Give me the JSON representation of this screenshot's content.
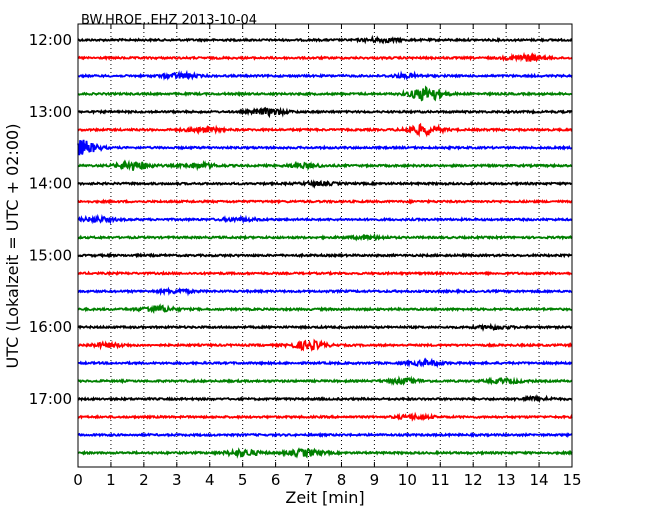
{
  "chart_data": {
    "type": "line",
    "title": "BW.HROE..EHZ 2013-10-04",
    "xlabel": "Zeit  [min]",
    "ylabel": "UTC (Lokalzeit = UTC + 02:00)",
    "xlim": [
      0,
      15
    ],
    "x_ticks": [
      "0",
      "1",
      "2",
      "3",
      "4",
      "5",
      "6",
      "7",
      "8",
      "9",
      "10",
      "11",
      "12",
      "13",
      "14",
      "15"
    ],
    "y_ticks": [
      "12:00",
      "13:00",
      "14:00",
      "15:00",
      "16:00",
      "17:00"
    ],
    "grid": "vertical dotted",
    "trace_colors": [
      "#000000",
      "#ff0000",
      "#0000ff",
      "#008000"
    ],
    "traces": [
      {
        "start": "12:00",
        "color": "#000000"
      },
      {
        "start": "12:15",
        "color": "#ff0000"
      },
      {
        "start": "12:30",
        "color": "#0000ff"
      },
      {
        "start": "12:45",
        "color": "#008000"
      },
      {
        "start": "13:00",
        "color": "#000000"
      },
      {
        "start": "13:15",
        "color": "#ff0000"
      },
      {
        "start": "13:30",
        "color": "#0000ff"
      },
      {
        "start": "13:45",
        "color": "#008000"
      },
      {
        "start": "14:00",
        "color": "#000000"
      },
      {
        "start": "14:15",
        "color": "#ff0000"
      },
      {
        "start": "14:30",
        "color": "#0000ff"
      },
      {
        "start": "14:45",
        "color": "#008000"
      },
      {
        "start": "15:00",
        "color": "#000000"
      },
      {
        "start": "15:15",
        "color": "#ff0000"
      },
      {
        "start": "15:30",
        "color": "#0000ff"
      },
      {
        "start": "15:45",
        "color": "#008000"
      },
      {
        "start": "16:00",
        "color": "#000000"
      },
      {
        "start": "16:15",
        "color": "#ff0000"
      },
      {
        "start": "16:30",
        "color": "#0000ff"
      },
      {
        "start": "16:45",
        "color": "#008000"
      },
      {
        "start": "17:00",
        "color": "#000000"
      },
      {
        "start": "17:15",
        "color": "#ff0000"
      },
      {
        "start": "17:30",
        "color": "#0000ff"
      },
      {
        "start": "17:45",
        "color": "#008000"
      }
    ],
    "events": [
      {
        "trace": "12:00",
        "minute": 9.2,
        "amp": 0.6
      },
      {
        "trace": "12:15",
        "minute": 13.6,
        "amp": 1.0
      },
      {
        "trace": "12:30",
        "minute": 3.1,
        "amp": 0.8
      },
      {
        "trace": "12:30",
        "minute": 10.0,
        "amp": 0.5
      },
      {
        "trace": "12:45",
        "minute": 10.6,
        "amp": 2.2
      },
      {
        "trace": "13:00",
        "minute": 5.8,
        "amp": 1.0
      },
      {
        "trace": "13:15",
        "minute": 3.8,
        "amp": 0.7
      },
      {
        "trace": "13:15",
        "minute": 10.5,
        "amp": 1.5
      },
      {
        "trace": "13:30",
        "minute": 0.05,
        "amp": 2.5
      },
      {
        "trace": "13:45",
        "minute": 1.7,
        "amp": 1.4
      },
      {
        "trace": "13:45",
        "minute": 3.7,
        "amp": 0.7
      },
      {
        "trace": "13:45",
        "minute": 6.9,
        "amp": 0.6
      },
      {
        "trace": "14:00",
        "minute": 7.3,
        "amp": 0.5
      },
      {
        "trace": "14:30",
        "minute": 0.6,
        "amp": 0.7
      },
      {
        "trace": "14:30",
        "minute": 4.9,
        "amp": 0.5
      },
      {
        "trace": "14:45",
        "minute": 8.8,
        "amp": 0.5
      },
      {
        "trace": "15:30",
        "minute": 3.0,
        "amp": 0.5
      },
      {
        "trace": "15:45",
        "minute": 2.4,
        "amp": 1.0
      },
      {
        "trace": "16:00",
        "minute": 12.6,
        "amp": 0.5
      },
      {
        "trace": "16:15",
        "minute": 7.0,
        "amp": 1.3
      },
      {
        "trace": "16:15",
        "minute": 0.9,
        "amp": 0.6
      },
      {
        "trace": "16:30",
        "minute": 10.6,
        "amp": 0.7
      },
      {
        "trace": "16:45",
        "minute": 9.9,
        "amp": 0.7
      },
      {
        "trace": "16:45",
        "minute": 13.0,
        "amp": 0.6
      },
      {
        "trace": "17:00",
        "minute": 13.9,
        "amp": 0.5
      },
      {
        "trace": "17:15",
        "minute": 10.2,
        "amp": 0.6
      },
      {
        "trace": "17:45",
        "minute": 5.0,
        "amp": 1.0
      },
      {
        "trace": "17:45",
        "minute": 6.9,
        "amp": 1.1
      }
    ]
  }
}
